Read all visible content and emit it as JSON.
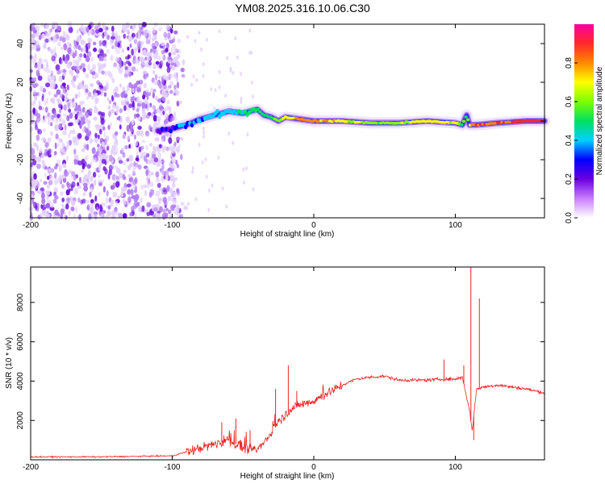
{
  "title": "YM08.2025.316.10.06.C30",
  "chart_data": [
    {
      "type": "heatmap",
      "name": "spectrogram",
      "xlabel": "Height of straight line (km)",
      "ylabel": "Frequency (Hz)",
      "xlim": [
        -200,
        163
      ],
      "ylim": [
        -50,
        50
      ],
      "xticks": [
        -200,
        -100,
        0,
        100
      ],
      "yticks": [
        -40,
        -20,
        0,
        20,
        40
      ],
      "colorbar": {
        "label": "Normalized spectral amplitude",
        "range": [
          0,
          1
        ],
        "ticks": [
          0.0,
          0.2,
          0.4,
          0.6,
          0.8
        ],
        "colormap": [
          "#ffffff",
          "#c87dff",
          "#6a00e0",
          "#0000ff",
          "#00d0ff",
          "#00e060",
          "#7cff00",
          "#ffff00",
          "#ff8800",
          "#ff2a2a",
          "#ff00a0"
        ]
      },
      "noise_region_x": [
        -200,
        -90
      ],
      "ridge": {
        "x": [
          -110,
          -100,
          -90,
          -80,
          -70,
          -60,
          -50,
          -40,
          -35,
          -30,
          -25,
          -20,
          -10,
          0,
          20,
          40,
          60,
          80,
          100,
          105,
          108,
          110,
          115,
          130,
          150,
          163
        ],
        "freq": [
          -5,
          -4,
          -2,
          1,
          3,
          5,
          4,
          6,
          3,
          2,
          0,
          2,
          1,
          0,
          0,
          -1,
          -1,
          0,
          -1,
          -2,
          3,
          -2,
          -2,
          -1,
          0,
          0
        ],
        "amplitude": [
          0.25,
          0.3,
          0.35,
          0.35,
          0.4,
          0.4,
          0.45,
          0.5,
          0.5,
          0.55,
          0.6,
          0.7,
          0.8,
          0.8,
          0.7,
          0.6,
          0.6,
          0.7,
          0.7,
          0.5,
          0.6,
          0.7,
          0.85,
          0.85,
          0.9,
          0.9
        ]
      }
    },
    {
      "type": "line",
      "name": "snr",
      "xlabel": "Height of straight line (km)",
      "ylabel": "SNR (10 * v/v)",
      "xlim": [
        -200,
        163
      ],
      "ylim": [
        0,
        9800
      ],
      "xticks": [
        -200,
        -100,
        0,
        100
      ],
      "yticks": [
        2000,
        4000,
        6000,
        8000
      ],
      "color": "#ee2222",
      "series": [
        {
          "name": "SNR",
          "x": [
            -200,
            -150,
            -100,
            -90,
            -80,
            -70,
            -60,
            -50,
            -40,
            -35,
            -30,
            -25,
            -20,
            -15,
            -10,
            0,
            10,
            20,
            30,
            40,
            50,
            60,
            70,
            80,
            90,
            100,
            105,
            108,
            110,
            112,
            115,
            120,
            130,
            140,
            150,
            163
          ],
          "values": [
            150,
            150,
            200,
            400,
            600,
            800,
            1000,
            600,
            500,
            900,
            1400,
            2000,
            2300,
            2600,
            2800,
            3000,
            3400,
            3800,
            4100,
            4200,
            4250,
            4050,
            4050,
            4050,
            4100,
            4100,
            4200,
            3200,
            2500,
            1500,
            3600,
            3700,
            3800,
            3700,
            3600,
            3400
          ]
        }
      ],
      "spikes": [
        {
          "x": -65,
          "value": 1900
        },
        {
          "x": -55,
          "value": 2100
        },
        {
          "x": -45,
          "value": 1500
        },
        {
          "x": -27,
          "value": 3600
        },
        {
          "x": -18,
          "value": 4800
        },
        {
          "x": -12,
          "value": 3500
        },
        {
          "x": 92,
          "value": 5100
        },
        {
          "x": 106,
          "value": 4800
        },
        {
          "x": 111,
          "value": 9800
        },
        {
          "x": 113,
          "value": 1000
        },
        {
          "x": 117,
          "value": 8200
        }
      ]
    }
  ]
}
